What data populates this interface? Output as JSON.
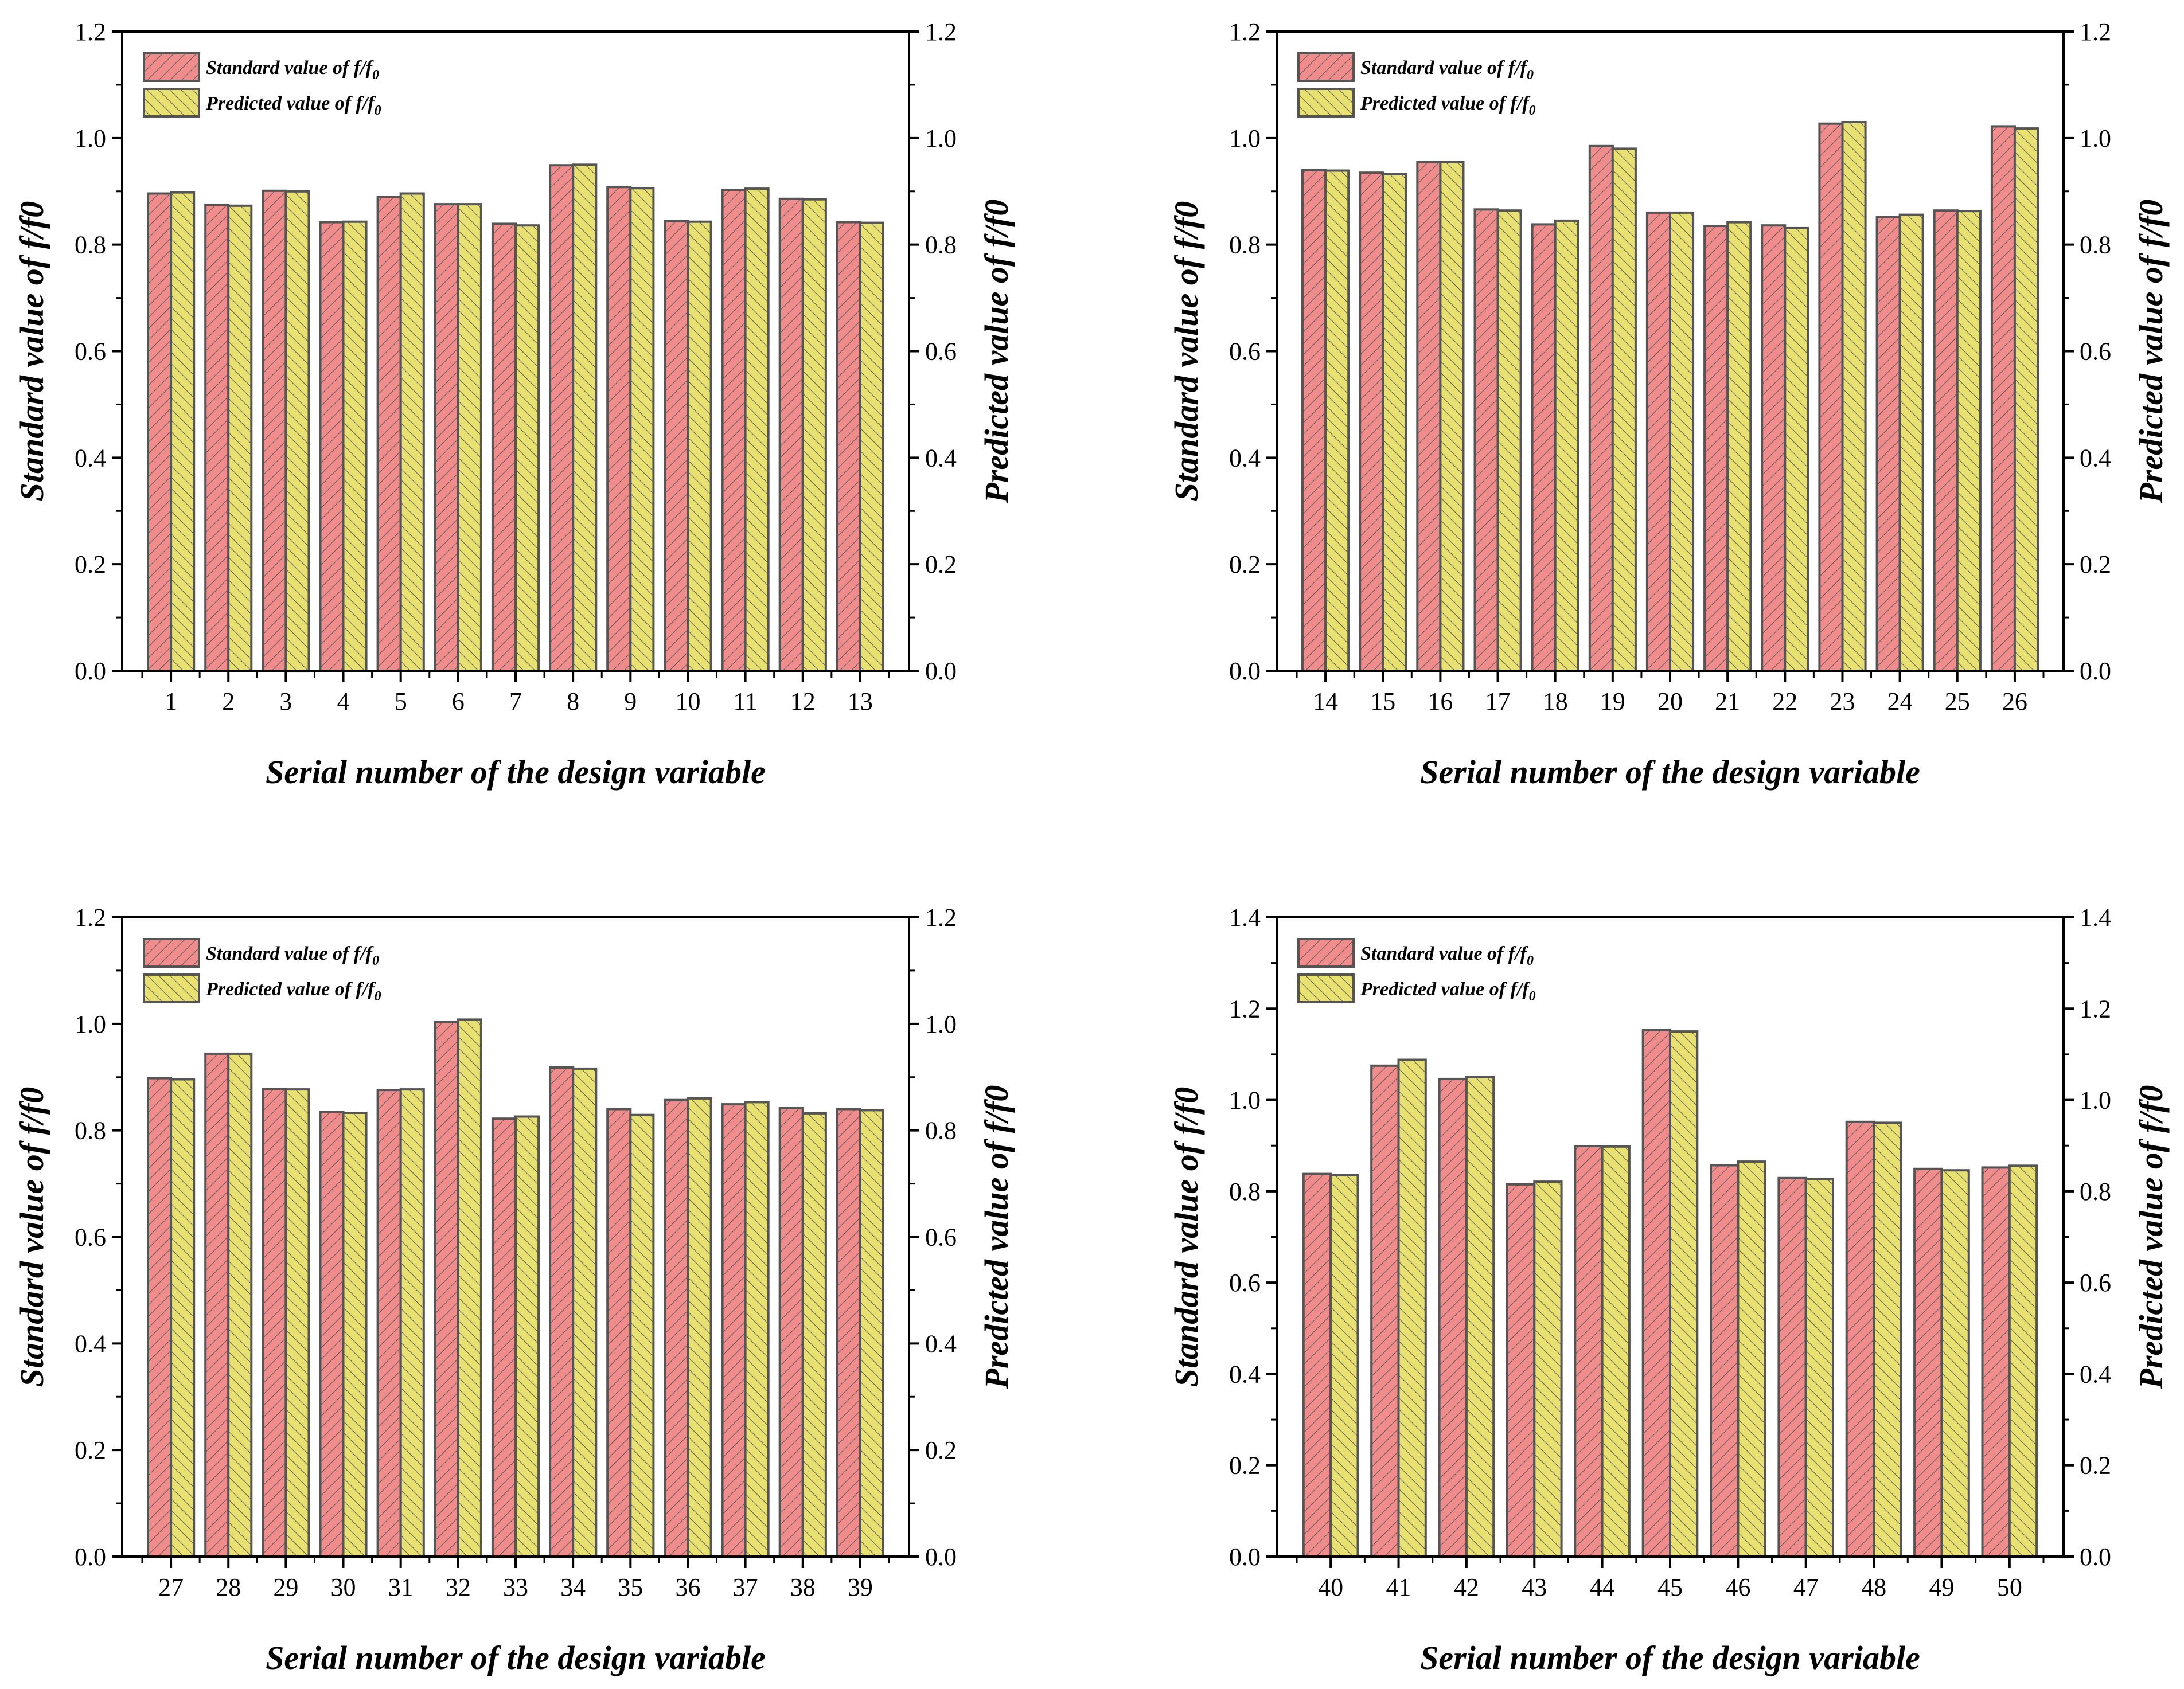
{
  "colors": {
    "standard_fill": "#F08C8C",
    "predicted_fill": "#E8E070",
    "bar_stroke": "#555555",
    "hatch": "#555555",
    "axis": "#000000"
  },
  "chart_data": [
    {
      "type": "bar",
      "title": "",
      "categories": [
        "1",
        "2",
        "3",
        "4",
        "5",
        "6",
        "7",
        "8",
        "9",
        "10",
        "11",
        "12",
        "13"
      ],
      "series": [
        {
          "name": "Standard value of f/f0",
          "values": [
            0.896,
            0.875,
            0.901,
            0.842,
            0.89,
            0.876,
            0.839,
            0.949,
            0.908,
            0.844,
            0.903,
            0.886,
            0.842
          ]
        },
        {
          "name": "Predicted value of f/f0",
          "values": [
            0.898,
            0.873,
            0.9,
            0.843,
            0.896,
            0.876,
            0.836,
            0.95,
            0.906,
            0.843,
            0.905,
            0.885,
            0.841
          ]
        }
      ],
      "xlabel": "Serial number of the design variable",
      "ylabel": "Standard value of f/f0",
      "y2label": "Predicted value of f/f0",
      "ylim": [
        0,
        1.2
      ],
      "yticks": [
        "0.0",
        "0.2",
        "0.4",
        "0.6",
        "0.8",
        "1.0",
        "1.2"
      ],
      "legend": [
        "Standard value of f/f",
        "Predicted value of f/f"
      ],
      "legend_subscript": "0",
      "legend_position": "top-left"
    },
    {
      "type": "bar",
      "title": "",
      "categories": [
        "14",
        "15",
        "16",
        "17",
        "18",
        "19",
        "20",
        "21",
        "22",
        "23",
        "24",
        "25",
        "26"
      ],
      "series": [
        {
          "name": "Standard value of f/f0",
          "values": [
            0.94,
            0.935,
            0.955,
            0.866,
            0.838,
            0.985,
            0.86,
            0.835,
            0.836,
            1.027,
            0.852,
            0.864,
            1.022
          ]
        },
        {
          "name": "Predicted value of f/f0",
          "values": [
            0.939,
            0.932,
            0.955,
            0.864,
            0.845,
            0.98,
            0.86,
            0.842,
            0.831,
            1.03,
            0.856,
            0.863,
            1.018
          ]
        }
      ],
      "xlabel": "Serial number of the design variable",
      "ylabel": "Standard value of f/f0",
      "y2label": "Predicted value of f/f0",
      "ylim": [
        0,
        1.2
      ],
      "yticks": [
        "0.0",
        "0.2",
        "0.4",
        "0.6",
        "0.8",
        "1.0",
        "1.2"
      ],
      "legend": [
        "Standard value of f/f",
        "Predicted value of f/f"
      ],
      "legend_subscript": "0",
      "legend_position": "top-left"
    },
    {
      "type": "bar",
      "title": "",
      "categories": [
        "27",
        "28",
        "29",
        "30",
        "31",
        "32",
        "33",
        "34",
        "35",
        "36",
        "37",
        "38",
        "39"
      ],
      "series": [
        {
          "name": "Standard value of f/f0",
          "values": [
            0.898,
            0.944,
            0.878,
            0.835,
            0.876,
            1.004,
            0.822,
            0.918,
            0.84,
            0.857,
            0.849,
            0.842,
            0.84
          ]
        },
        {
          "name": "Predicted value of f/f0",
          "values": [
            0.896,
            0.944,
            0.877,
            0.833,
            0.877,
            1.008,
            0.826,
            0.916,
            0.829,
            0.86,
            0.853,
            0.832,
            0.838
          ]
        }
      ],
      "xlabel": "Serial number of the design variable",
      "ylabel": "Standard value of f/f0",
      "y2label": "Predicted value of f/f0",
      "ylim": [
        0,
        1.2
      ],
      "yticks": [
        "0.0",
        "0.2",
        "0.4",
        "0.6",
        "0.8",
        "1.0",
        "1.2"
      ],
      "legend": [
        "Standard value of f/f",
        "Predicted value of f/f"
      ],
      "legend_subscript": "0",
      "legend_position": "top-left"
    },
    {
      "type": "bar",
      "title": "",
      "categories": [
        "40",
        "41",
        "42",
        "43",
        "44",
        "45",
        "46",
        "47",
        "48",
        "49",
        "50"
      ],
      "series": [
        {
          "name": "Standard value of f/f0",
          "values": [
            0.838,
            1.075,
            1.046,
            0.815,
            0.899,
            1.153,
            0.857,
            0.829,
            0.952,
            0.849,
            0.852
          ]
        },
        {
          "name": "Predicted value of f/f0",
          "values": [
            0.835,
            1.088,
            1.05,
            0.821,
            0.898,
            1.15,
            0.865,
            0.827,
            0.95,
            0.846,
            0.856
          ]
        }
      ],
      "xlabel": "Serial number of the design variable",
      "ylabel": "Standard value of f/f0",
      "y2label": "Predicted value of f/f0",
      "ylim": [
        0,
        1.4
      ],
      "yticks": [
        "0.0",
        "0.2",
        "0.4",
        "0.6",
        "0.8",
        "1.0",
        "1.2",
        "1.4"
      ],
      "legend": [
        "Standard value of f/f",
        "Predicted value of f/f"
      ],
      "legend_subscript": "0",
      "legend_position": "top-left"
    }
  ]
}
